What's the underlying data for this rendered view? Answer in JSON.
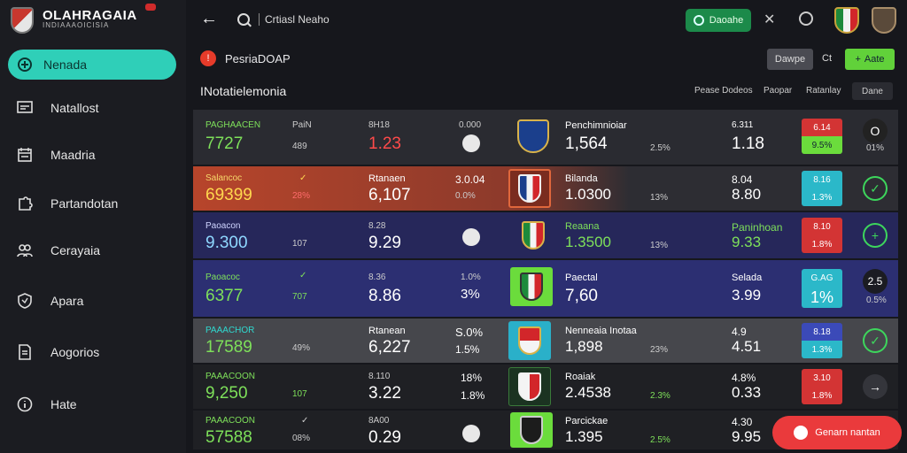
{
  "brand": {
    "name": "OLAHRAGAIA",
    "subtitle": "INDIAAAOICISIA"
  },
  "sidebar": {
    "items": [
      {
        "label": "Nenada",
        "icon": "globe-icon",
        "active": true
      },
      {
        "label": "Natallost",
        "icon": "monitor-icon"
      },
      {
        "label": "Maadria",
        "icon": "calendar-icon"
      },
      {
        "label": "Partandotan",
        "icon": "puzzle-icon"
      },
      {
        "label": "Cerayaia",
        "icon": "people-icon"
      },
      {
        "label": "Apara",
        "icon": "shield-icon"
      },
      {
        "label": "Aogorios",
        "icon": "document-icon"
      },
      {
        "label": "Hate",
        "icon": "info-icon"
      }
    ]
  },
  "topbar": {
    "search_value": "Crtiasl Neaho",
    "green_button": "Daoahe"
  },
  "section": {
    "title": "PesriaDOAP",
    "buttons": {
      "grey": "Dawpe",
      "text": "Ct",
      "lime": "Aate"
    },
    "table_title": "INotatielemonia",
    "filters": [
      "Pease Dodeos",
      "Paopar",
      "Ratanlay"
    ],
    "filter_box": "Dane"
  },
  "rows": [
    {
      "label": "PAGHAACEN",
      "value": "7727",
      "a_label": "PaiN",
      "a_val": "489",
      "b_label": "8H18",
      "b_val": "1.23",
      "c_label": "0.000",
      "c_val": "",
      "team": "Penchimnioiar",
      "team_val": "1,564",
      "team_pct": "2.5%",
      "d_label": "6.311",
      "d_val": "1.18",
      "badge_top": "6.14",
      "badge_bot": "9.5%",
      "btn": "O",
      "btn_sub": "01%"
    },
    {
      "label": "Salancoc",
      "value": "69399",
      "a_label": "✓",
      "a_val": "28%",
      "b_label": "Rtanaen",
      "b_val": "6,107",
      "c_label": "3.0.04",
      "c_val": "0.0%",
      "team": "Bilanda",
      "team_val": "1.0300",
      "team_pct": "13%",
      "d_label": "8.04",
      "d_val": "8.80",
      "badge_top": "8.16",
      "badge_bot": "1.3%",
      "btn": "✓",
      "btn_sub": ""
    },
    {
      "label": "Paoacon",
      "value": "9.300",
      "a_label": "",
      "a_val": "107",
      "b_label": "8.28",
      "b_val": "9.29",
      "c_label": "",
      "c_val": "",
      "team": "Reaana",
      "team_val": "1.3500",
      "team_pct": "13%",
      "d_label": "Paninhoan",
      "d_val": "9.33",
      "badge_top": "8.10",
      "badge_bot": "1.8%",
      "btn": "+",
      "btn_sub": ""
    },
    {
      "label": "Paoacoc",
      "value": "6377",
      "a_label": "✓",
      "a_val": "707",
      "b_label": "8.36",
      "b_val": "8.86",
      "c_label": "1.0%",
      "c_val": "3%",
      "team": "Paectal",
      "team_val": "7,60",
      "team_pct": "",
      "d_label": "Selada",
      "d_val": "3.99",
      "badge_top": "G.AG",
      "badge_bot": "1%",
      "btn": "2.5",
      "btn_sub": "0.5%"
    },
    {
      "label": "PAAACHOR",
      "value": "17589",
      "a_label": "",
      "a_val": "49%",
      "b_label": "Rtanean",
      "b_val": "6,227",
      "c_label": "S.0%",
      "c_val": "1.5%",
      "team": "Nenneaia Inotaa",
      "team_val": "1,898",
      "team_pct": "23%",
      "d_label": "4.9",
      "d_val": "4.51",
      "badge_top": "8.18",
      "badge_bot": "1.3%",
      "btn": "✓",
      "btn_sub": ""
    },
    {
      "label": "PAAACOON",
      "value": "9,250",
      "a_label": "",
      "a_val": "107",
      "b_label": "8.110",
      "b_val": "3.22",
      "c_label": "18%",
      "c_val": "1.8%",
      "team": "Roaiak",
      "team_val": "2.4538",
      "team_pct": "2.3%",
      "d_label": "4.8%",
      "d_val": "0.33",
      "badge_top": "3.10",
      "badge_bot": "1.8%",
      "btn": "→",
      "btn_sub": ""
    },
    {
      "label": "PAAACOON",
      "value": "57588",
      "a_label": "✓",
      "a_val": "08%",
      "b_label": "8A00",
      "b_val": "0.29",
      "c_label": "",
      "c_val": "",
      "team": "Parcickae",
      "team_val": "1.395",
      "team_pct": "2.5%",
      "d_label": "4.30",
      "d_val": "9.95",
      "badge_top": "",
      "badge_bot": "",
      "btn": "",
      "btn_sub": ""
    }
  ],
  "fab": {
    "label": "Genarn nantan"
  }
}
